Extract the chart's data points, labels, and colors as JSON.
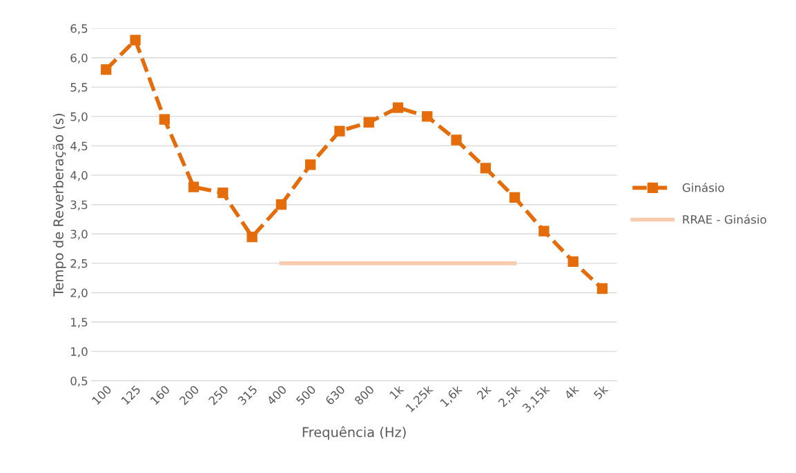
{
  "chart_data": {
    "type": "line",
    "xlabel": "Frequência (Hz)",
    "ylabel": "Tempo de Reverberação (s)",
    "categories": [
      "100",
      "125",
      "160",
      "200",
      "250",
      "315",
      "400",
      "500",
      "630",
      "800",
      "1k",
      "1,25k",
      "1,6k",
      "2k",
      "2,5k",
      "3,15k",
      "4k",
      "5k"
    ],
    "series": [
      {
        "name": "Ginásio",
        "color": "#e46c0a",
        "marker": "square",
        "line_style": "dashed",
        "values": [
          5.8,
          6.3,
          4.95,
          3.8,
          3.7,
          2.95,
          3.5,
          4.18,
          4.75,
          4.9,
          5.15,
          5.0,
          4.6,
          4.12,
          3.62,
          3.05,
          2.53,
          2.07
        ]
      },
      {
        "name": "RRAE - Ginásio",
        "color": "#f8cbad",
        "marker": "none",
        "line_style": "solid",
        "values": [
          null,
          null,
          null,
          null,
          null,
          null,
          2.5,
          2.5,
          2.5,
          2.5,
          2.5,
          2.5,
          2.5,
          2.5,
          2.5,
          null,
          null,
          null
        ]
      }
    ],
    "ylim": [
      0.5,
      6.5
    ],
    "yticks": [
      {
        "value": 0.5,
        "label": "0,5"
      },
      {
        "value": 1.0,
        "label": "1,0"
      },
      {
        "value": 1.5,
        "label": "1,5"
      },
      {
        "value": 2.0,
        "label": "2,0"
      },
      {
        "value": 2.5,
        "label": "2,5"
      },
      {
        "value": 3.0,
        "label": "3,0"
      },
      {
        "value": 3.5,
        "label": "3,5"
      },
      {
        "value": 4.0,
        "label": "4,0"
      },
      {
        "value": 4.5,
        "label": "4,5"
      },
      {
        "value": 5.0,
        "label": "5,0"
      },
      {
        "value": 5.5,
        "label": "5,5"
      },
      {
        "value": 6.0,
        "label": "6,0"
      },
      {
        "value": 6.5,
        "label": "6,5"
      }
    ],
    "grid": "y",
    "legend": "right"
  }
}
